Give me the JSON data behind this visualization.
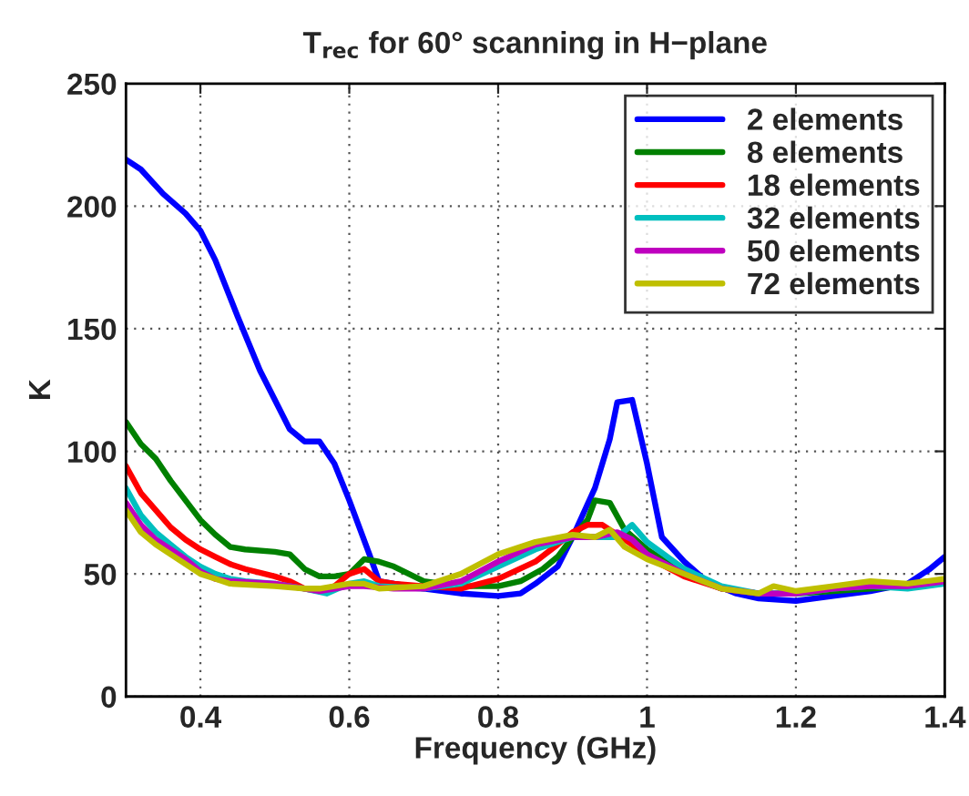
{
  "chart_data": {
    "type": "line",
    "title": "T$_{rec}$ for 60° scanning in H−plane",
    "xlabel": "Frequency (GHz)",
    "ylabel": "K",
    "xlim": [
      0.3,
      1.4
    ],
    "xticks": [
      0.4,
      0.6,
      0.8,
      1,
      1.2,
      1.4
    ],
    "ylim": [
      0,
      250
    ],
    "yticks": [
      0,
      50,
      100,
      150,
      200,
      250
    ],
    "grid": true,
    "legend": "top right",
    "line_style": "solid",
    "marker": "none",
    "series": [
      {
        "name": "2 elements",
        "color": "#0000ff",
        "x": [
          0.3,
          0.32,
          0.35,
          0.38,
          0.4,
          0.42,
          0.45,
          0.48,
          0.5,
          0.52,
          0.54,
          0.56,
          0.58,
          0.6,
          0.627,
          0.64,
          0.7,
          0.75,
          0.8,
          0.83,
          0.85,
          0.88,
          0.9,
          0.93,
          0.95,
          0.96,
          0.98,
          1.0,
          1.02,
          1.05,
          1.08,
          1.12,
          1.15,
          1.2,
          1.25,
          1.3,
          1.35,
          1.38,
          1.4
        ],
        "values": [
          219,
          215,
          205,
          197,
          190,
          178,
          155,
          133,
          121,
          109,
          104,
          104,
          95,
          80,
          58,
          47,
          44,
          42,
          41,
          42,
          46,
          53,
          65,
          85,
          105,
          120,
          121,
          95,
          65,
          55,
          47,
          42,
          40,
          39,
          41,
          43,
          46,
          52,
          57
        ]
      },
      {
        "name": "8 elements",
        "color": "#008000",
        "x": [
          0.3,
          0.32,
          0.34,
          0.36,
          0.38,
          0.4,
          0.42,
          0.44,
          0.46,
          0.5,
          0.52,
          0.54,
          0.56,
          0.58,
          0.6,
          0.62,
          0.64,
          0.66,
          0.68,
          0.7,
          0.75,
          0.8,
          0.83,
          0.86,
          0.88,
          0.9,
          0.92,
          0.93,
          0.95,
          0.97,
          1.0,
          1.05,
          1.1,
          1.15,
          1.2,
          1.25,
          1.3,
          1.35,
          1.4
        ],
        "values": [
          112,
          103,
          97,
          88,
          80,
          72,
          66,
          61,
          60,
          59,
          58,
          52,
          49,
          49,
          50,
          56,
          55,
          53,
          50,
          47,
          45,
          45,
          47,
          52,
          57,
          65,
          72,
          80,
          79,
          68,
          60,
          50,
          44,
          42,
          42,
          43,
          44,
          45,
          47
        ]
      },
      {
        "name": "18 elements",
        "color": "#ff0000",
        "x": [
          0.3,
          0.32,
          0.34,
          0.36,
          0.38,
          0.4,
          0.42,
          0.44,
          0.46,
          0.5,
          0.52,
          0.54,
          0.56,
          0.58,
          0.6,
          0.62,
          0.64,
          0.66,
          0.7,
          0.75,
          0.8,
          0.85,
          0.88,
          0.9,
          0.92,
          0.94,
          0.96,
          0.98,
          1.0,
          1.05,
          1.1,
          1.15
        ],
        "values": [
          94,
          83,
          76,
          69,
          64,
          60,
          57,
          54,
          52,
          49,
          47,
          44,
          43,
          45,
          50,
          52,
          47,
          46,
          45,
          44,
          48,
          55,
          62,
          67,
          70,
          70,
          66,
          62,
          57,
          49,
          44,
          42
        ]
      },
      {
        "name": "32 elements",
        "color": "#00bfbf",
        "x": [
          0.3,
          0.32,
          0.34,
          0.36,
          0.38,
          0.4,
          0.42,
          0.44,
          0.46,
          0.5,
          0.54,
          0.57,
          0.6,
          0.62,
          0.64,
          0.7,
          0.75,
          0.8,
          0.85,
          0.9,
          0.93,
          0.96,
          0.98,
          1.0,
          1.05,
          1.1,
          1.15,
          1.2,
          1.25,
          1.3,
          1.35,
          1.4
        ],
        "values": [
          85,
          74,
          67,
          62,
          57,
          53,
          50,
          48,
          47,
          46,
          44,
          42,
          46,
          47,
          45,
          44,
          46,
          53,
          60,
          65,
          65,
          65,
          70,
          63,
          52,
          45,
          42,
          42,
          44,
          45,
          44,
          46
        ]
      },
      {
        "name": "50 elements",
        "color": "#bf00bf",
        "x": [
          0.3,
          0.32,
          0.34,
          0.36,
          0.38,
          0.4,
          0.42,
          0.44,
          0.5,
          0.54,
          0.56,
          0.6,
          0.62,
          0.66,
          0.7,
          0.75,
          0.8,
          0.85,
          0.9,
          0.93,
          0.96,
          0.98,
          1.0,
          1.05,
          1.1,
          1.15,
          1.2,
          1.25,
          1.3,
          1.35,
          1.4
        ],
        "values": [
          79,
          70,
          64,
          60,
          56,
          51,
          48,
          47,
          46,
          44,
          43,
          45,
          45,
          44,
          44,
          47,
          55,
          62,
          65,
          65,
          67,
          64,
          58,
          50,
          44,
          42,
          42,
          44,
          45,
          45,
          47
        ]
      },
      {
        "name": "72 elements",
        "color": "#bfbf00",
        "x": [
          0.3,
          0.32,
          0.34,
          0.36,
          0.38,
          0.4,
          0.42,
          0.44,
          0.5,
          0.54,
          0.56,
          0.6,
          0.62,
          0.64,
          0.7,
          0.75,
          0.8,
          0.85,
          0.9,
          0.93,
          0.95,
          0.97,
          1.0,
          1.05,
          1.1,
          1.15,
          1.17,
          1.2,
          1.25,
          1.3,
          1.35,
          1.4
        ],
        "values": [
          76,
          67,
          62,
          58,
          54,
          50,
          48,
          46,
          45,
          44,
          44,
          46,
          46,
          44,
          45,
          50,
          58,
          63,
          66,
          65,
          68,
          61,
          56,
          50,
          44,
          42,
          45,
          43,
          45,
          47,
          46,
          48
        ]
      }
    ]
  }
}
